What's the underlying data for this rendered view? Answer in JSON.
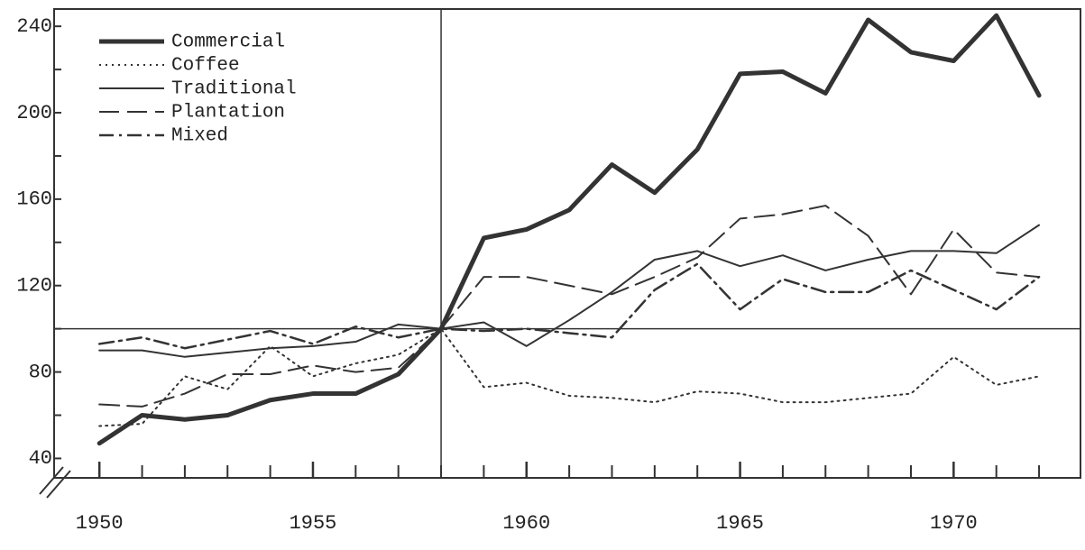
{
  "chart_data": {
    "type": "line",
    "x": [
      1950,
      1951,
      1952,
      1953,
      1954,
      1955,
      1956,
      1957,
      1958,
      1959,
      1960,
      1961,
      1962,
      1963,
      1964,
      1965,
      1966,
      1967,
      1968,
      1969,
      1970,
      1971,
      1972
    ],
    "series": [
      {
        "name": "Commercial",
        "color": "#333333",
        "width": 5,
        "dash": "none",
        "values": [
          47,
          60,
          58,
          60,
          67,
          70,
          70,
          79,
          100,
          142,
          146,
          155,
          176,
          163,
          183,
          218,
          219,
          209,
          243,
          228,
          224,
          245,
          208
        ]
      },
      {
        "name": "Coffee",
        "color": "#333333",
        "width": 2,
        "dash": "2 5",
        "values": [
          55,
          56,
          78,
          72,
          92,
          78,
          84,
          88,
          100,
          73,
          75,
          69,
          68,
          66,
          71,
          70,
          66,
          66,
          68,
          70,
          87,
          74,
          78
        ]
      },
      {
        "name": "Traditional",
        "color": "#333333",
        "width": 2,
        "dash": "none",
        "values": [
          90,
          90,
          87,
          89,
          91,
          92,
          94,
          102,
          100,
          103,
          92,
          104,
          117,
          132,
          136,
          129,
          134,
          127,
          132,
          136,
          136,
          135,
          148
        ]
      },
      {
        "name": "Plantation",
        "color": "#333333",
        "width": 2,
        "dash": "22 9",
        "values": [
          65,
          64,
          70,
          79,
          79,
          83,
          80,
          82,
          100,
          124,
          124,
          120,
          116,
          124,
          133,
          151,
          153,
          157,
          143,
          116,
          146,
          126,
          124
        ]
      },
      {
        "name": "Mixed",
        "color": "#333333",
        "width": 2.5,
        "dash": "16 6 3 6",
        "values": [
          93,
          96,
          91,
          95,
          99,
          93,
          101,
          96,
          100,
          99,
          100,
          98,
          96,
          118,
          130,
          109,
          123,
          117,
          117,
          127,
          118,
          109,
          124
        ]
      }
    ],
    "xlim": [
      1948.94,
      1972.97
    ],
    "ylim": [
      31,
      248
    ],
    "xticks": [
      1950,
      1955,
      1960,
      1965,
      1970
    ],
    "minor_xticks": [
      1950,
      1951,
      1952,
      1953,
      1954,
      1955,
      1956,
      1957,
      1958,
      1959,
      1960,
      1961,
      1962,
      1963,
      1964,
      1965,
      1966,
      1967,
      1968,
      1969,
      1970,
      1971,
      1972
    ],
    "yticks": [
      40,
      80,
      120,
      160,
      200,
      240
    ],
    "minor_yticks": [
      60,
      100,
      140,
      180,
      220
    ],
    "reference_x": 1958,
    "reference_y": 100
  }
}
